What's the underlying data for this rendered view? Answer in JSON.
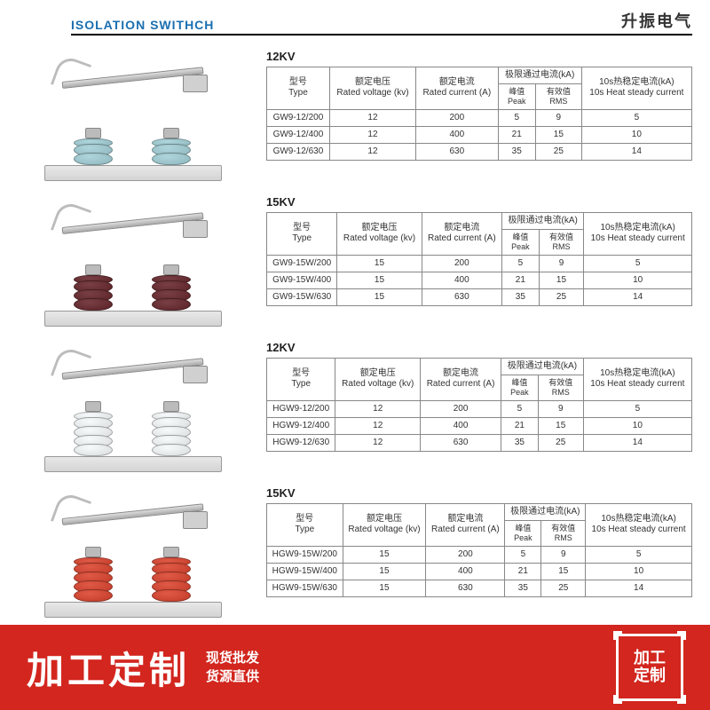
{
  "header": {
    "title_en": "ISOLATION SWITHCH",
    "title_cn": "升振电气"
  },
  "table_headers": {
    "type_cn": "型号",
    "type_en": "Type",
    "voltage_cn": "额定电压",
    "voltage_en": "Rated voltage (kv)",
    "current_cn": "额定电流",
    "current_en": "Rated current (A)",
    "limit_cn": "极限通过电流(kA)",
    "peak_cn": "峰值",
    "peak_en": "Peak",
    "rms_cn": "有效值",
    "rms_en": "RMS",
    "steady_cn": "10s热稳定电流(kA)",
    "steady_en": "10s Heat steady current"
  },
  "sections": [
    {
      "title": "12KV",
      "insulator_color": "#8fb7bd",
      "shed_count": 3,
      "rows": [
        {
          "type": "GW9-12/200",
          "voltage": "12",
          "current": "200",
          "peak": "5",
          "rms": "9",
          "steady": "5"
        },
        {
          "type": "GW9-12/400",
          "voltage": "12",
          "current": "400",
          "peak": "21",
          "rms": "15",
          "steady": "10"
        },
        {
          "type": "GW9-12/630",
          "voltage": "12",
          "current": "630",
          "peak": "35",
          "rms": "25",
          "steady": "14"
        }
      ]
    },
    {
      "title": "15KV",
      "insulator_color": "#5a2226",
      "shed_count": 4,
      "rows": [
        {
          "type": "GW9-15W/200",
          "voltage": "15",
          "current": "200",
          "peak": "5",
          "rms": "9",
          "steady": "5"
        },
        {
          "type": "GW9-15W/400",
          "voltage": "15",
          "current": "400",
          "peak": "21",
          "rms": "15",
          "steady": "10"
        },
        {
          "type": "GW9-15W/630",
          "voltage": "15",
          "current": "630",
          "peak": "35",
          "rms": "25",
          "steady": "14"
        }
      ]
    },
    {
      "title": "12KV",
      "insulator_color": "#d9dcdd",
      "shed_count": 5,
      "rows": [
        {
          "type": "HGW9-12/200",
          "voltage": "12",
          "current": "200",
          "peak": "5",
          "rms": "9",
          "steady": "5"
        },
        {
          "type": "HGW9-12/400",
          "voltage": "12",
          "current": "400",
          "peak": "21",
          "rms": "15",
          "steady": "10"
        },
        {
          "type": "HGW9-12/630",
          "voltage": "12",
          "current": "630",
          "peak": "35",
          "rms": "25",
          "steady": "14"
        }
      ]
    },
    {
      "title": "15KV",
      "insulator_color": "#c13b28",
      "shed_count": 5,
      "rows": [
        {
          "type": "HGW9-15W/200",
          "voltage": "15",
          "current": "200",
          "peak": "5",
          "rms": "9",
          "steady": "5"
        },
        {
          "type": "HGW9-15W/400",
          "voltage": "15",
          "current": "400",
          "peak": "21",
          "rms": "15",
          "steady": "10"
        },
        {
          "type": "HGW9-15W/630",
          "voltage": "15",
          "current": "630",
          "peak": "35",
          "rms": "25",
          "steady": "14"
        }
      ]
    }
  ],
  "footer": {
    "big": "加工定制",
    "sub1": "现货批发",
    "sub2": "货源直供",
    "emblem1": "加工",
    "emblem2": "定制",
    "bg_color": "#d2261e"
  }
}
